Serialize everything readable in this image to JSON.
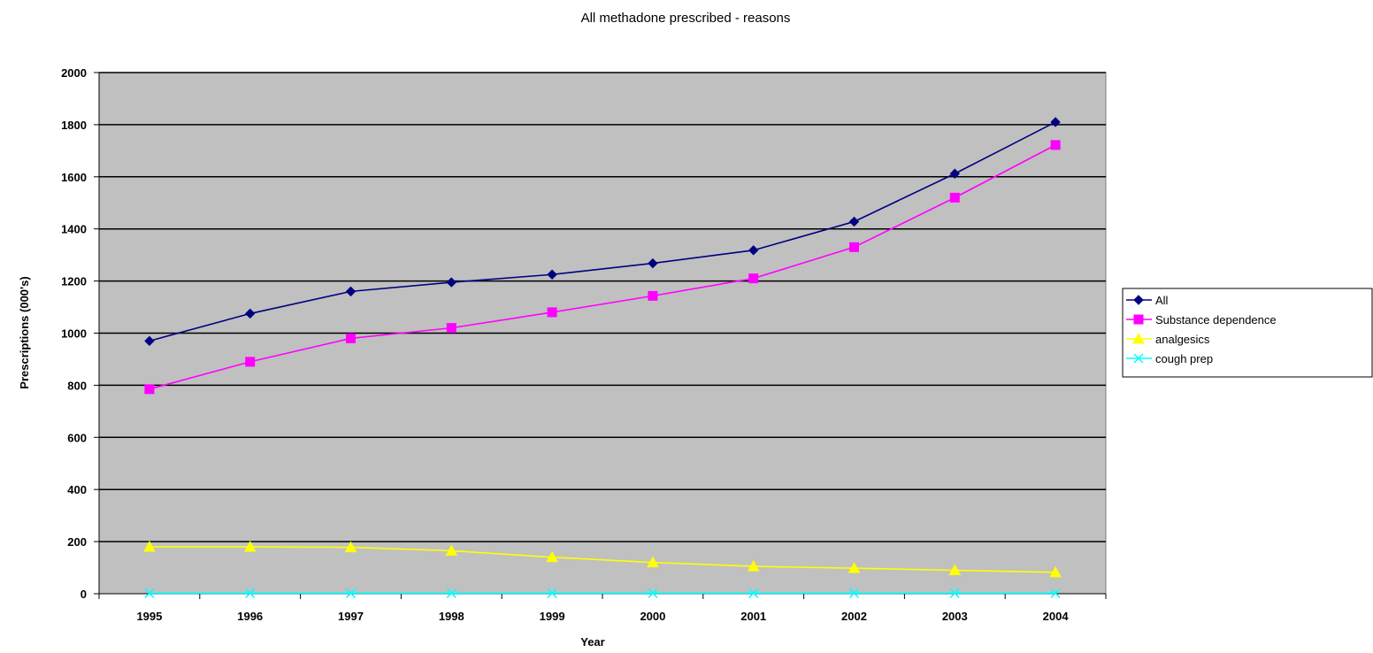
{
  "chart_data": {
    "type": "line",
    "title": "All methadone prescribed - reasons",
    "xlabel": "Year",
    "ylabel": "Prescriptions (000's)",
    "categories": [
      "1995",
      "1996",
      "1997",
      "1998",
      "1999",
      "2000",
      "2001",
      "2002",
      "2003",
      "2004"
    ],
    "ylim": [
      0,
      2000
    ],
    "yticks": [
      "0",
      "200",
      "400",
      "600",
      "800",
      "1000",
      "1200",
      "1400",
      "1600",
      "1800",
      "2000"
    ],
    "grid": "horizontal",
    "legend": "right",
    "plot_background": "#c0c0c0",
    "series": [
      {
        "name": "All",
        "color": "#000080",
        "marker": "diamond",
        "values": [
          970,
          1075,
          1160,
          1195,
          1225,
          1268,
          1318,
          1428,
          1612,
          1810
        ]
      },
      {
        "name": "Substance dependence",
        "color": "#ff00ff",
        "marker": "square",
        "values": [
          785,
          890,
          980,
          1020,
          1080,
          1143,
          1210,
          1330,
          1520,
          1722
        ]
      },
      {
        "name": "analgesics",
        "color": "#ffff00",
        "marker": "triangle",
        "values": [
          180,
          180,
          178,
          165,
          140,
          120,
          105,
          98,
          90,
          82
        ]
      },
      {
        "name": "cough prep",
        "color": "#00ffff",
        "marker": "x",
        "values": [
          2,
          2,
          2,
          2,
          2,
          2,
          2,
          2,
          2,
          2
        ]
      }
    ]
  }
}
